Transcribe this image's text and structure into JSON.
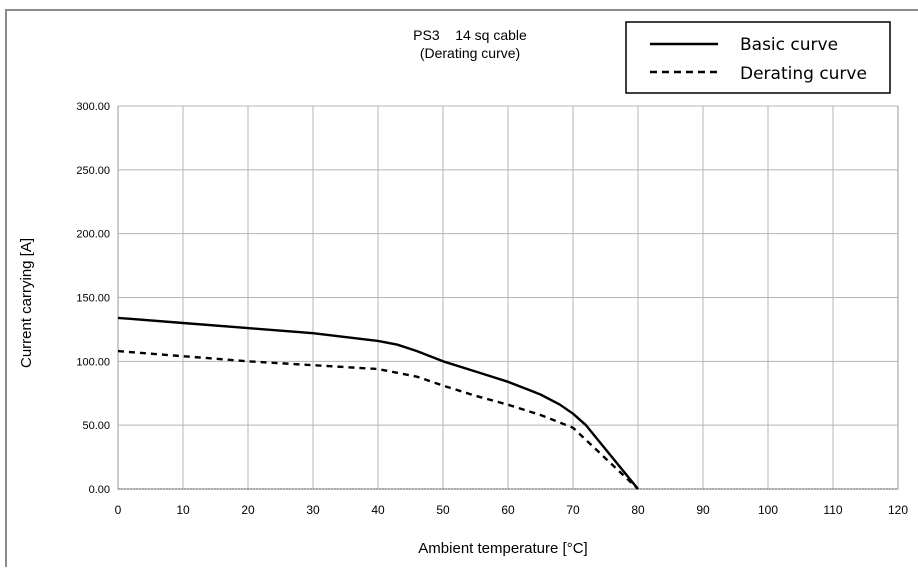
{
  "chart_data": {
    "type": "line",
    "title": "PS3    14 sq cable",
    "subtitle": "(Derating curve)",
    "xlabel": "Ambient temperature [°C]",
    "ylabel": "Current carrying [A]",
    "xlim": [
      0,
      120
    ],
    "ylim": [
      0,
      300
    ],
    "x_ticks": [
      "0",
      "10",
      "20",
      "30",
      "40",
      "50",
      "60",
      "70",
      "80",
      "90",
      "100",
      "110",
      "120"
    ],
    "y_ticks": [
      "0.00",
      "50.00",
      "100.00",
      "150.00",
      "200.00",
      "250.00",
      "300.00"
    ],
    "grid": true,
    "legend_position": "top-right",
    "series": [
      {
        "name": "Basic curve",
        "style": "solid",
        "color": "#000000",
        "points": [
          [
            0,
            134
          ],
          [
            10,
            130
          ],
          [
            20,
            126
          ],
          [
            30,
            122
          ],
          [
            40,
            116
          ],
          [
            43,
            113
          ],
          [
            46,
            108
          ],
          [
            50,
            100
          ],
          [
            55,
            92
          ],
          [
            60,
            84
          ],
          [
            63,
            78
          ],
          [
            65,
            74
          ],
          [
            68,
            66
          ],
          [
            70,
            59
          ],
          [
            72,
            50
          ],
          [
            80,
            0
          ]
        ]
      },
      {
        "name": "Derating curve",
        "style": "dashed",
        "color": "#000000",
        "points": [
          [
            0,
            108
          ],
          [
            10,
            104
          ],
          [
            20,
            100
          ],
          [
            30,
            97
          ],
          [
            40,
            94
          ],
          [
            46,
            88
          ],
          [
            50,
            81
          ],
          [
            55,
            73
          ],
          [
            60,
            66
          ],
          [
            65,
            58
          ],
          [
            70,
            48
          ],
          [
            80,
            0
          ]
        ]
      }
    ]
  }
}
